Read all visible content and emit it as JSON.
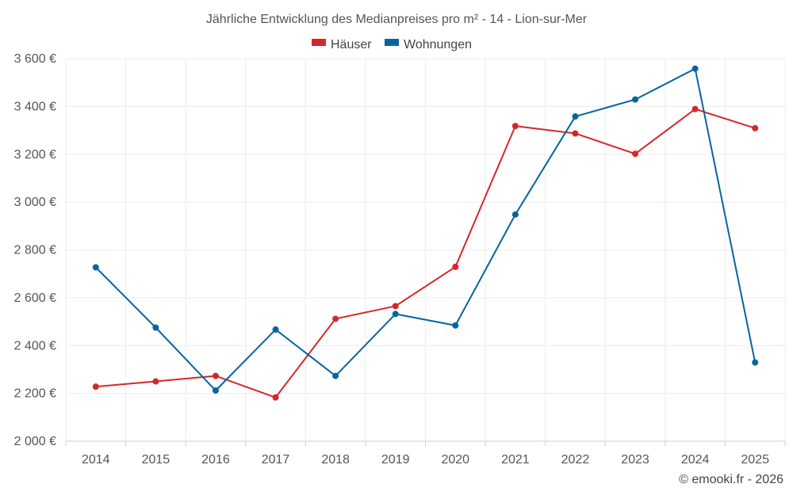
{
  "chart_data": {
    "type": "line",
    "title": "Jährliche Entwicklung des Medianpreises pro m² - 14 - Lion-sur-Mer",
    "categories": [
      "2014",
      "2015",
      "2016",
      "2017",
      "2018",
      "2019",
      "2020",
      "2021",
      "2022",
      "2023",
      "2024",
      "2025"
    ],
    "series": [
      {
        "name": "Häuser",
        "color": "#d62728",
        "values": [
          2228,
          2250,
          2273,
          2183,
          2512,
          2565,
          2729,
          3318,
          3287,
          3202,
          3389,
          3309
        ]
      },
      {
        "name": "Wohnungen",
        "color": "#07659d",
        "values": [
          2727,
          2475,
          2212,
          2467,
          2273,
          2532,
          2484,
          2948,
          3358,
          3429,
          3558,
          2329
        ]
      }
    ],
    "ylim": [
      2000,
      3600
    ],
    "yticks": [
      2000,
      2200,
      2400,
      2600,
      2800,
      3000,
      3200,
      3400,
      3600
    ],
    "ytick_labels": [
      "2 000 €",
      "2 200 €",
      "2 400 €",
      "2 600 €",
      "2 800 €",
      "3 000 €",
      "3 200 €",
      "3 400 €",
      "3 600 €"
    ],
    "xlabel": "",
    "ylabel": "",
    "grid": true,
    "legend_position": "top-center"
  },
  "footer": {
    "credit": "© emooki.fr - 2026"
  }
}
